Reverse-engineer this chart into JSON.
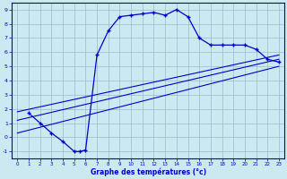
{
  "xlabel": "Graphe des températures (°c)",
  "xlim": [
    -0.5,
    23.5
  ],
  "ylim": [
    -1.5,
    9.5
  ],
  "xticks": [
    0,
    1,
    2,
    3,
    4,
    5,
    6,
    7,
    8,
    9,
    10,
    11,
    12,
    13,
    14,
    15,
    16,
    17,
    18,
    19,
    20,
    21,
    22,
    23
  ],
  "yticks": [
    -1,
    0,
    1,
    2,
    3,
    4,
    5,
    6,
    7,
    8,
    9
  ],
  "bg_color": "#cce8f0",
  "line_color": "#0000cc",
  "grid_color": "#99bbcc",
  "main_x": [
    1,
    2,
    3,
    4,
    5,
    5.5,
    6,
    7,
    8,
    9,
    10,
    11,
    12,
    13,
    14,
    15,
    16,
    17,
    18,
    19,
    20,
    21,
    22,
    23
  ],
  "main_y": [
    1.7,
    1.0,
    0.3,
    -0.3,
    -1.0,
    -1.0,
    -0.9,
    5.8,
    7.5,
    8.5,
    8.6,
    8.7,
    8.8,
    8.6,
    9.0,
    8.5,
    7.0,
    6.5,
    6.5,
    6.5,
    6.5,
    6.2,
    5.5,
    5.3
  ],
  "reg_lines": [
    {
      "x": [
        0,
        23
      ],
      "y": [
        0.3,
        5.0
      ]
    },
    {
      "x": [
        0,
        23
      ],
      "y": [
        1.2,
        5.5
      ]
    },
    {
      "x": [
        0,
        23
      ],
      "y": [
        1.8,
        5.8
      ]
    }
  ]
}
